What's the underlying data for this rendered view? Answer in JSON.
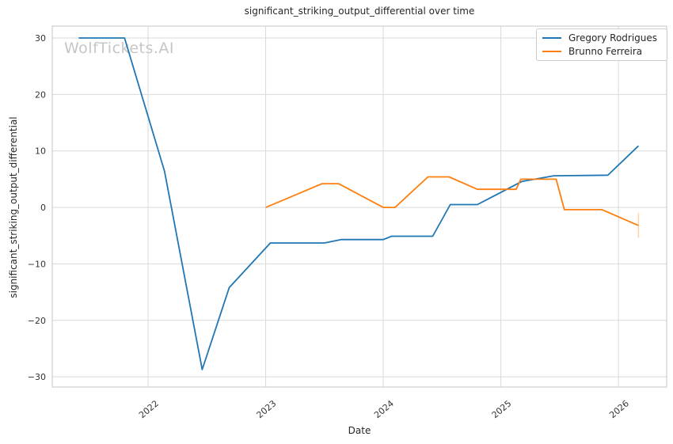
{
  "watermark": "WolfTickets.AI",
  "chart_data": {
    "type": "line",
    "title": "significant_striking_output_differential over time",
    "xlabel": "Date",
    "ylabel": "significant_striking_output_differential",
    "x_ticks": [
      2022,
      2023,
      2024,
      2025,
      2026
    ],
    "y_ticks": [
      -30,
      -20,
      -10,
      0,
      10,
      20,
      30
    ],
    "xlim": [
      2021.185,
      2026.41
    ],
    "ylim": [
      -31.8,
      32.1
    ],
    "grid": true,
    "legend_position": "upper right",
    "series": [
      {
        "name": "Gregory Rodrigues",
        "color": "#1f77b4",
        "x": [
          2021.41,
          2021.8,
          2022.14,
          2022.46,
          2022.69,
          2023.04,
          2023.5,
          2023.64,
          2024.0,
          2024.07,
          2024.42,
          2024.57,
          2024.8,
          2025.18,
          2025.45,
          2025.91,
          2026.17
        ],
        "y": [
          30,
          30,
          6.4,
          -28.7,
          -14.2,
          -6.3,
          -6.3,
          -5.7,
          -5.7,
          -5.1,
          -5.1,
          0.5,
          0.5,
          4.6,
          5.6,
          5.7,
          10.9
        ]
      },
      {
        "name": "Brunno Ferreira",
        "color": "#ff7f0e",
        "x": [
          2023.0,
          2023.48,
          2023.62,
          2024.0,
          2024.1,
          2024.38,
          2024.56,
          2024.8,
          2025.13,
          2025.17,
          2025.47,
          2025.54,
          2025.86,
          2026.17
        ],
        "y": [
          0.0,
          4.2,
          4.2,
          0.0,
          0.0,
          5.4,
          5.4,
          3.2,
          3.2,
          5.0,
          5.0,
          -0.4,
          -0.4,
          -3.2
        ],
        "end_bar": {
          "x": 2026.17,
          "y_from": -1.0,
          "y_to": -5.4
        }
      }
    ]
  },
  "colors": {
    "grid": "#d9d9d9",
    "spine": "#c4c4c4",
    "tick_text": "#333333",
    "title_text": "#262626",
    "watermark": "#c6c6c6",
    "background": "#ffffff"
  }
}
